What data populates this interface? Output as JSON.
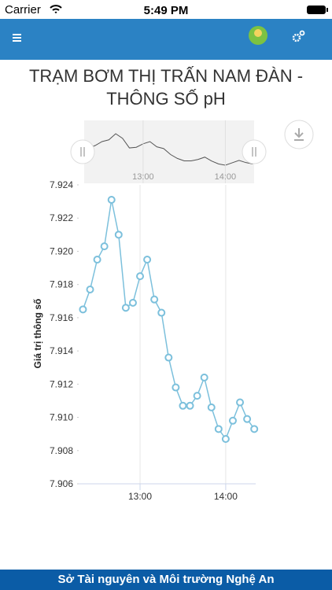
{
  "status_bar": {
    "carrier": "Carrier",
    "time": "5:49 PM"
  },
  "chart_data": {
    "type": "line",
    "title": "TRẠM BƠM THỊ TRẤN NAM ĐÀN - THÔNG SỐ pH",
    "y_label": "Giá trị thông số",
    "x": [
      740,
      745,
      750,
      755,
      760,
      765,
      770,
      775,
      780,
      785,
      790,
      795,
      800,
      805,
      810,
      815,
      820,
      825,
      830,
      835,
      840,
      845,
      850,
      855,
      860
    ],
    "values": [
      7.9165,
      7.9177,
      7.9195,
      7.9203,
      7.9231,
      7.921,
      7.9166,
      7.9169,
      7.9185,
      7.9195,
      7.9171,
      7.9163,
      7.9136,
      7.9118,
      7.9107,
      7.9107,
      7.9113,
      7.9124,
      7.9106,
      7.9093,
      7.9087,
      7.9098,
      7.9109,
      7.9099,
      7.9093
    ],
    "color": "#7cc0dc",
    "xlim": [
      737,
      861
    ],
    "xticks": [
      {
        "value": 780,
        "label": "13:00"
      },
      {
        "value": 840,
        "label": "14:00"
      }
    ],
    "ylim": [
      7.906,
      7.924
    ],
    "yticks": [
      7.906,
      7.908,
      {
        "value": 7.91,
        "label": "7.910"
      },
      7.912,
      7.914,
      7.916,
      7.918,
      {
        "value": 7.92,
        "label": "7.920"
      },
      7.922,
      7.924
    ],
    "xgrid": true,
    "navigator": true
  },
  "footer": "Sở Tài nguyên và Môi trường Nghệ An"
}
